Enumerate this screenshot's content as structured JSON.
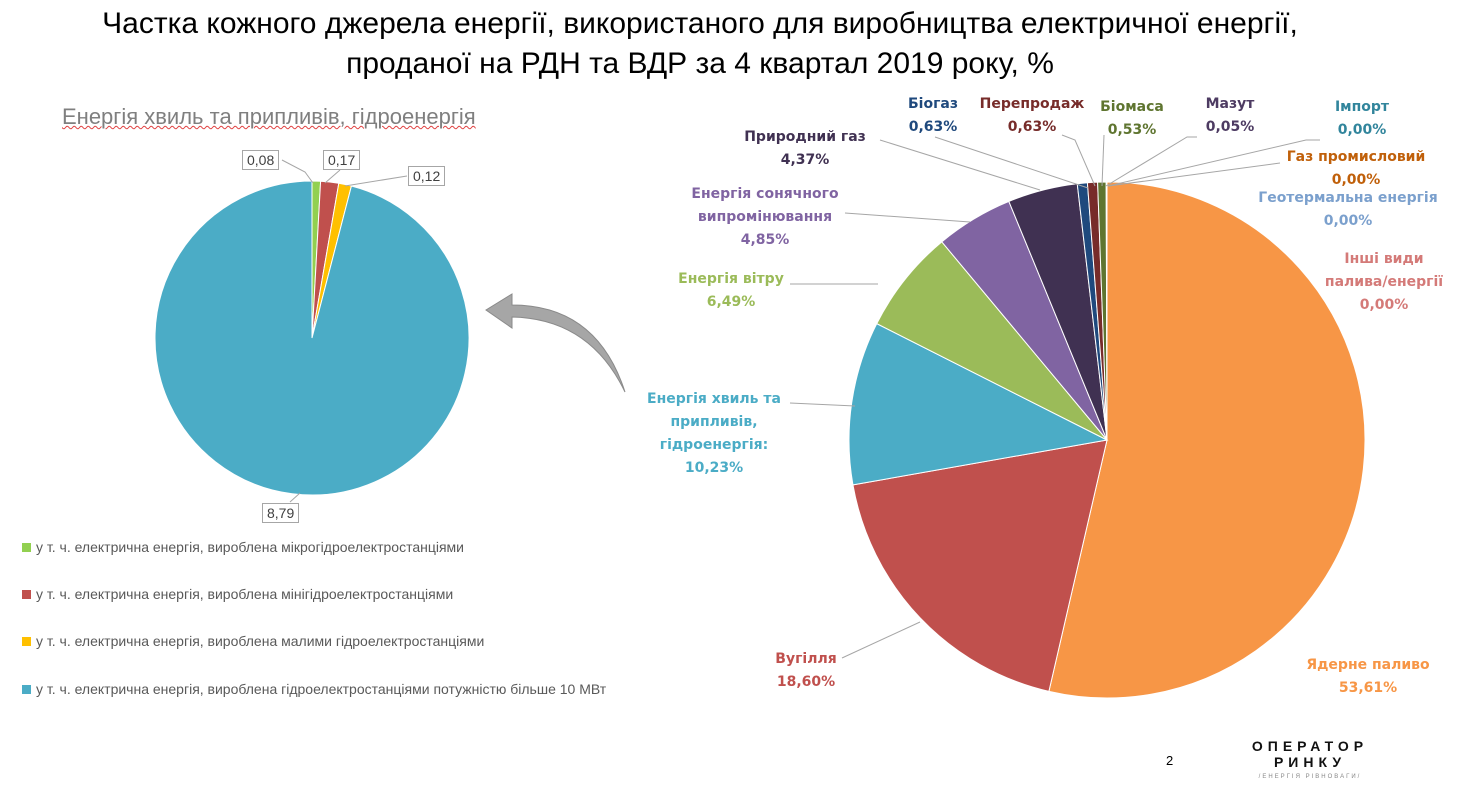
{
  "title_line1": "Частка кожного джерела енергії, використаного для виробництва електричної енергії,",
  "title_line2": "проданої на РДН та ВДР за 4 квартал 2019 року, %",
  "chart_data": [
    {
      "type": "pie",
      "title": "Енергія хвиль та припливів, гідроенергія",
      "categories": [
        "у т. ч. електрична енергія, вироблена мікрогідроелектростанціями",
        "у т. ч. електрична енергія, вироблена мінігідроелектростанціями",
        "у т. ч. електрична енергія, вироблена малими гідроелектростанціями",
        "у т. ч. електрична енергія, вироблена гідроелектростанціями потужністю більше 10 МВт"
      ],
      "values": [
        0.08,
        0.17,
        0.12,
        8.79
      ],
      "data_labels": [
        "0,08",
        "0,17",
        "0,12",
        "8,79"
      ],
      "colors": [
        "#92D050",
        "#C0504D",
        "#FFC000",
        "#4BACC6"
      ],
      "legend_position": "bottom"
    },
    {
      "type": "pie",
      "categories": [
        "Ядерне паливо",
        "Вугілля",
        "Енергія хвиль та припливів, гідроенергія:",
        "Енергія вітру",
        "Енергія сонячного випромінювання",
        "Природний газ",
        "Біогаз",
        "Перепродаж",
        "Біомаса",
        "Мазут",
        "Імпорт",
        "Газ промисловий",
        "Геотермальна енергія",
        "Інші види палива/енергії"
      ],
      "values": [
        53.61,
        18.6,
        10.23,
        6.49,
        4.85,
        4.37,
        0.63,
        0.63,
        0.53,
        0.05,
        0.0,
        0.0,
        0.0,
        0.0
      ],
      "data_labels": [
        "53,61%",
        "18,60%",
        "10,23%",
        "6,49%",
        "4,85%",
        "4,37%",
        "0,63%",
        "0,63%",
        "0,53%",
        "0,05%",
        "0,00%",
        "0,00%",
        "0,00%",
        "0,00%"
      ],
      "colors": [
        "#F79646",
        "#C0504D",
        "#4BACC6",
        "#9BBB59",
        "#8064A2",
        "#403152",
        "#1F497D",
        "#772C2A",
        "#5F7530",
        "#4D3B62",
        "#31859C",
        "#C0600A",
        "#7BA0CD",
        "#D47A78"
      ]
    }
  ],
  "page_number": "2",
  "logo": {
    "line1": "ОПЕРАТОР",
    "line2": "РИНКУ",
    "line3": "/ЕНЕРГІЯ РІВНОВАГИ/"
  }
}
